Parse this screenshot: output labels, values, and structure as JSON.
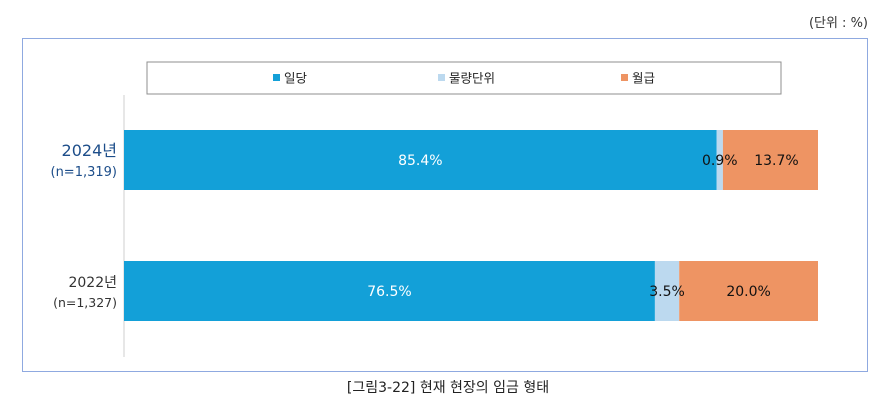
{
  "unit_note": "(단위 : %)",
  "caption": "[그림3-22] 현재 현장의 임금 형태",
  "chart_data": {
    "type": "bar",
    "orientation": "horizontal",
    "stacked": true,
    "normalized_to": 100,
    "categories": [
      {
        "label": "2024년",
        "sublabel": "(n=1,319)",
        "emphasis": true
      },
      {
        "label": "2022년",
        "sublabel": "(n=1,327)",
        "emphasis": false
      }
    ],
    "series": [
      {
        "name": "일당",
        "color": "#13a0d8",
        "values": [
          85.4,
          76.5
        ],
        "labels": [
          "85.4%",
          "76.5%"
        ],
        "label_color": "#ffffff"
      },
      {
        "name": "물량단위",
        "color": "#bcd9ef",
        "values": [
          0.9,
          3.5
        ],
        "labels": [
          "0.9%",
          "3.5%"
        ],
        "label_color": "#111111"
      },
      {
        "name": "월급",
        "color": "#ee9463",
        "values": [
          13.7,
          20.0
        ],
        "labels": [
          "13.7%",
          "20.0%"
        ],
        "label_color": "#111111"
      }
    ],
    "legend_position": "top",
    "grid": false
  }
}
